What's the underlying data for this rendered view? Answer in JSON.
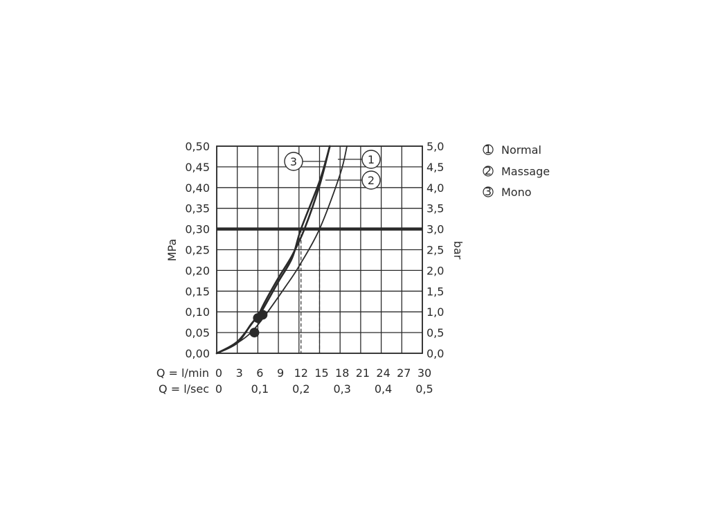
{
  "chart_data": {
    "type": "line",
    "title": "",
    "ylabel_left": "MPa",
    "ylabel_right": "bar",
    "xlabel_row1": "Q = l/min",
    "xlabel_row2": "Q = l/sec",
    "x_ticks_lmin": [
      "0",
      "3",
      "6",
      "9",
      "12",
      "15",
      "18",
      "21",
      "24",
      "27",
      "30"
    ],
    "x_ticks_lsec": [
      "0",
      "0,1",
      "0,2",
      "0,3",
      "0,4",
      "0,5"
    ],
    "y_ticks_left": [
      "0,00",
      "0,05",
      "0,10",
      "0,15",
      "0,20",
      "0,25",
      "0,30",
      "0,35",
      "0,40",
      "0,45",
      "0,50"
    ],
    "y_ticks_right": [
      "0,0",
      "0,5",
      "1,0",
      "1,5",
      "2,0",
      "2,5",
      "3,0",
      "3,5",
      "4,0",
      "4,5",
      "5,0"
    ],
    "xlim": [
      0,
      30
    ],
    "ylim": [
      0,
      0.5
    ],
    "grid": true,
    "reference_pressure": 0.3,
    "series": [
      {
        "name": "Normal",
        "marker": "1",
        "x": [
          0,
          3,
          5,
          6,
          7,
          9,
          11,
          12.8,
          15,
          16.5
        ],
        "y": [
          0,
          0.025,
          0.07,
          0.09,
          0.123,
          0.182,
          0.236,
          0.3,
          0.405,
          0.5
        ],
        "flow_at_reference": 12.8
      },
      {
        "name": "Massage",
        "marker": "2",
        "x": [
          0,
          3,
          5,
          7,
          10,
          12,
          15,
          18,
          19
        ],
        "y": [
          0,
          0.025,
          0.05,
          0.09,
          0.16,
          0.21,
          0.3,
          0.432,
          0.5
        ],
        "flow_at_reference": 15
      },
      {
        "name": "Mono",
        "marker": "3",
        "x": [
          0,
          3,
          5.5,
          6.5,
          9,
          11,
          12.3,
          15,
          16.5
        ],
        "y": [
          0,
          0.028,
          0.08,
          0.1,
          0.173,
          0.23,
          0.3,
          0.415,
          0.5
        ],
        "flow_at_reference": 12.3
      }
    ],
    "operating_points": [
      {
        "x": 5.5,
        "y": 0.05
      },
      {
        "x": 6,
        "y": 0.085
      },
      {
        "x": 6.7,
        "y": 0.093
      }
    ]
  },
  "legend": [
    {
      "marker": "1",
      "label": "Normal"
    },
    {
      "marker": "2",
      "label": "Massage"
    },
    {
      "marker": "3",
      "label": "Mono"
    }
  ]
}
